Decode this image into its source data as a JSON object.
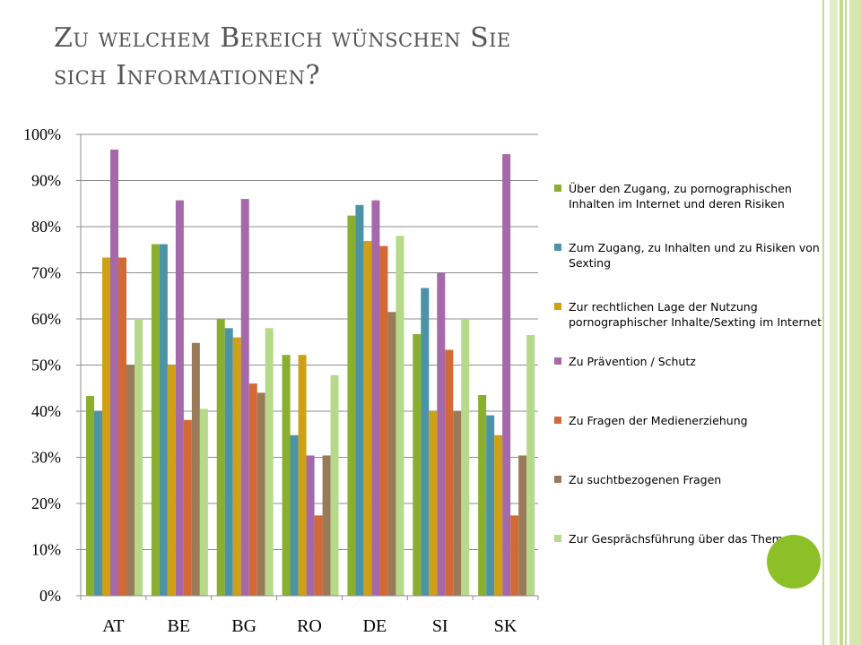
{
  "slide": {
    "title_line1": "Zu welchem Bereich wünschen Sie",
    "title_line2": "sich Informationen?",
    "colors": {
      "background": "#ffffff",
      "title": "#555555",
      "decor_green": "#c5dc8f",
      "decor_green_light": "#e1edc4",
      "circle": "#8dc026"
    }
  },
  "chart_data": {
    "type": "bar",
    "categories": [
      "AT",
      "BE",
      "BG",
      "RO",
      "DE",
      "SI",
      "SK"
    ],
    "ylim": [
      0,
      100
    ],
    "yticks": [
      "0%",
      "10%",
      "20%",
      "30%",
      "40%",
      "50%",
      "60%",
      "70%",
      "80%",
      "90%",
      "100%"
    ],
    "grid": true,
    "legend_position": "right",
    "series": [
      {
        "name": "Über den Zugang, zu pornographischen Inhalten im Internet und deren Risiken",
        "color": "#8aae2d",
        "values": [
          43.3,
          76.2,
          60.0,
          52.2,
          82.4,
          56.7,
          43.5
        ]
      },
      {
        "name": "Zum Zugang, zu Inhalten und zu Risiken von Sexting",
        "color": "#4c93a6",
        "values": [
          40.0,
          76.2,
          58.0,
          34.8,
          84.7,
          66.7,
          39.1
        ]
      },
      {
        "name": "Zur rechtlichen Lage der Nutzung pornographischer Inhalte/Sexting im Internet",
        "color": "#cf9f14",
        "values": [
          73.3,
          50.0,
          56.0,
          52.2,
          76.9,
          40.0,
          34.8
        ]
      },
      {
        "name": "Zu Prävention / Schutz",
        "color": "#a568a9",
        "values": [
          96.7,
          85.7,
          86.0,
          30.4,
          85.7,
          70.0,
          95.7
        ]
      },
      {
        "name": "Zu Fragen der Medienerziehung",
        "color": "#d36a36",
        "values": [
          73.3,
          38.1,
          46.0,
          17.4,
          75.8,
          53.3,
          17.4
        ]
      },
      {
        "name": "Zu suchtbezogenen Fragen",
        "color": "#9a7b59",
        "values": [
          50.0,
          54.8,
          44.0,
          30.4,
          61.5,
          40.0,
          30.4
        ]
      },
      {
        "name": "Zur Gesprächsführung über das Thema",
        "color": "#b7d98a",
        "values": [
          60.0,
          40.5,
          58.0,
          47.8,
          78.0,
          60.0,
          56.5
        ]
      }
    ]
  }
}
